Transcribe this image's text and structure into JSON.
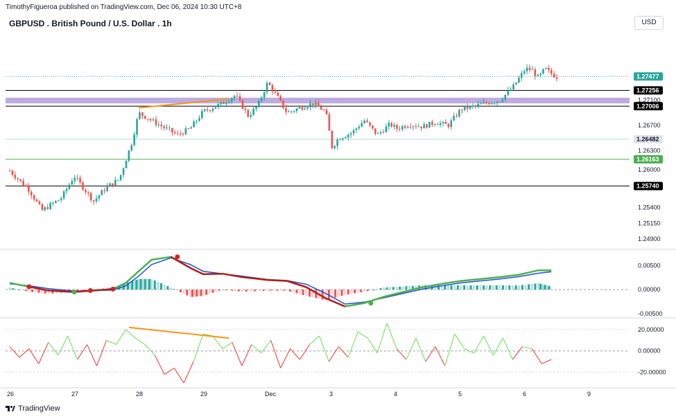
{
  "header": {
    "published": "TimothyFigueroa published on TradingView.com, Dec 06, 2024 10:30 UTC+8",
    "title": "GBPUSD . British Pound / U.S. Dollar . 1h",
    "currency_button": "USD"
  },
  "footer": {
    "brand": "TradingView"
  },
  "colors": {
    "up": "#26a69a",
    "down": "#ef5350",
    "zone": "#b39ddb",
    "orange": "#f7931a",
    "macd_line": "#4caf50",
    "signal_line": "#1e4fd6",
    "red_line": "#b71c1c"
  },
  "chart_data": [
    {
      "type": "candlestick",
      "title": "GBPUSD . British Pound / U.S. Dollar . 1h",
      "x_ticks": [
        "26",
        "27",
        "28",
        "29",
        "Dec",
        "3",
        "4",
        "5",
        "6",
        "9"
      ],
      "y_ticks": [
        "1.27100",
        "1.26700",
        "1.26300",
        "1.26000",
        "1.25400",
        "1.25150",
        "1.24900"
      ],
      "ylim": [
        1.2478,
        1.2814
      ],
      "last_price": "1.27477",
      "horizontal_levels": [
        {
          "label": "1.27256",
          "value": 1.27256,
          "color": "#000000"
        },
        {
          "label": "1.27006",
          "value": 1.27006,
          "color": "#000000"
        },
        {
          "label": "1.26482",
          "value": 1.26482,
          "color": "#b2dfdb"
        },
        {
          "label": "1.26163",
          "value": 1.26163,
          "color": "#4caf50"
        },
        {
          "label": "1.25740",
          "value": 1.2574,
          "color": "#000000"
        }
      ],
      "zone": {
        "from": 1.2705,
        "to": 1.2714
      },
      "trendline": {
        "x": [
          2.0,
          3.4
        ],
        "y": [
          1.2698,
          1.2712
        ]
      },
      "close_path": {
        "x": [
          0,
          0.3,
          0.5,
          0.8,
          1.0,
          1.3,
          1.5,
          1.7,
          1.9,
          2.0,
          2.3,
          2.6,
          2.8,
          3.0,
          3.3,
          3.5,
          3.7,
          3.85,
          4.0,
          4.15,
          4.3,
          4.5,
          4.7,
          4.9,
          5.0,
          5.1,
          5.3,
          5.5,
          5.7,
          5.9,
          6.0,
          6.2,
          6.4,
          6.6,
          6.8,
          7.0,
          7.2,
          7.4,
          7.6,
          7.8,
          8.0,
          8.1,
          8.2,
          8.3,
          8.4,
          8.5
        ],
        "y": [
          1.2598,
          1.2568,
          1.2535,
          1.2555,
          1.259,
          1.255,
          1.2572,
          1.2585,
          1.2645,
          1.269,
          1.2672,
          1.2655,
          1.2665,
          1.2692,
          1.2705,
          1.2718,
          1.2685,
          1.2702,
          1.2738,
          1.2715,
          1.269,
          1.2698,
          1.2705,
          1.2692,
          1.2635,
          1.265,
          1.2658,
          1.2678,
          1.2655,
          1.2672,
          1.2665,
          1.2672,
          1.2668,
          1.2675,
          1.267,
          1.2696,
          1.27,
          1.2706,
          1.271,
          1.273,
          1.276,
          1.2758,
          1.2745,
          1.276,
          1.2752,
          1.2746
        ]
      }
    },
    {
      "type": "line",
      "title": "MACD",
      "y_ticks": [
        "0.00500",
        "0.00000",
        "-0.00500"
      ],
      "ylim": [
        -0.0053,
        0.0075
      ],
      "x": [
        0,
        0.3,
        0.6,
        1.0,
        1.3,
        1.6,
        1.8,
        2.0,
        2.2,
        2.5,
        2.8,
        3.0,
        3.3,
        3.6,
        4.0,
        4.3,
        4.6,
        4.9,
        5.2,
        5.5,
        5.8,
        6.1,
        6.4,
        6.7,
        7.0,
        7.3,
        7.6,
        7.9,
        8.2,
        8.4
      ],
      "series": [
        {
          "values": [
            0.0014,
            0.0006,
            -0.0002,
            -0.0005,
            -0.0002,
            0.0001,
            0.0014,
            0.0038,
            0.0062,
            0.0068,
            0.0045,
            0.0032,
            0.0033,
            0.0026,
            0.002,
            0.0018,
            0.0005,
            -0.0018,
            -0.0035,
            -0.0028,
            -0.0015,
            -0.0005,
            0.0005,
            0.0012,
            0.0018,
            0.0022,
            0.0026,
            0.0031,
            0.004,
            0.004
          ]
        },
        {
          "values": [
            0.0012,
            0.0008,
            0.0002,
            -0.0003,
            -0.0002,
            -0.0001,
            0.0008,
            0.0028,
            0.0052,
            0.0066,
            0.0052,
            0.0038,
            0.0033,
            0.0028,
            0.0021,
            0.0019,
            0.0011,
            -0.0008,
            -0.003,
            -0.0026,
            -0.0017,
            -0.0008,
            0.0001,
            0.0008,
            0.0014,
            0.0018,
            0.0022,
            0.0027,
            0.0034,
            0.0037
          ]
        }
      ]
    },
    {
      "type": "line",
      "title": "Oscillator",
      "y_ticks": [
        "20.00000",
        "0.00000",
        "-20.00000"
      ],
      "ylim": [
        -32,
        29
      ],
      "x": [
        0,
        0.15,
        0.3,
        0.45,
        0.6,
        0.75,
        0.9,
        1.05,
        1.2,
        1.35,
        1.5,
        1.65,
        1.8,
        1.95,
        2.1,
        2.25,
        2.4,
        2.55,
        2.7,
        2.85,
        3.0,
        3.15,
        3.3,
        3.45,
        3.6,
        3.75,
        3.9,
        4.05,
        4.2,
        4.35,
        4.5,
        4.65,
        4.8,
        4.95,
        5.1,
        5.25,
        5.4,
        5.55,
        5.7,
        5.85,
        6.0,
        6.15,
        6.3,
        6.45,
        6.6,
        6.75,
        6.9,
        7.05,
        7.2,
        7.35,
        7.5,
        7.65,
        7.8,
        7.95,
        8.1,
        8.25,
        8.4
      ],
      "values": [
        4,
        -6,
        2,
        -12,
        8,
        -4,
        14,
        -8,
        6,
        -14,
        10,
        6,
        20,
        12,
        6,
        -4,
        -22,
        -16,
        -30,
        -10,
        16,
        14,
        2,
        8,
        -14,
        6,
        -2,
        10,
        -16,
        2,
        -8,
        6,
        14,
        -10,
        4,
        -6,
        18,
        12,
        -2,
        26,
        2,
        -8,
        12,
        -10,
        4,
        -14,
        16,
        2,
        -2,
        14,
        -4,
        12,
        -8,
        4,
        2,
        -12,
        -8
      ]
    }
  ]
}
